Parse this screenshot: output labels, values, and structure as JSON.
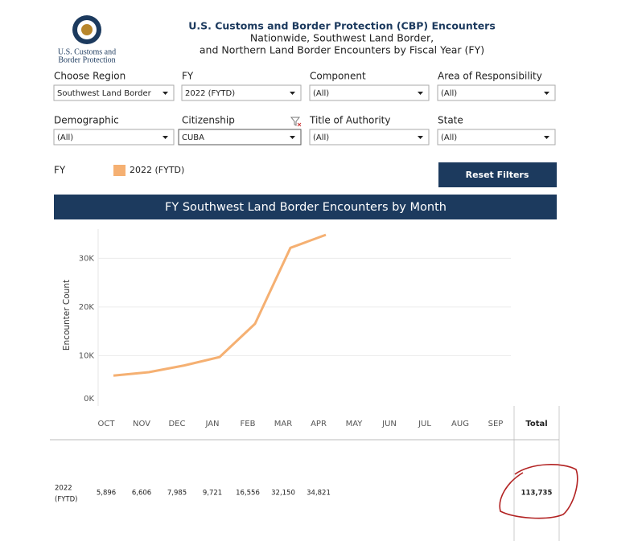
{
  "header": {
    "agency_lines": [
      "U.S. Customs and",
      "Border Protection"
    ],
    "title_lines": [
      "U.S. Customs and Border Protection (CBP) Encounters",
      "Nationwide, Southwest Land Border,",
      "and Northern Land Border Encounters by Fiscal Year (FY)"
    ]
  },
  "filters": [
    {
      "label": "Choose Region",
      "value": "Southwest Land Border"
    },
    {
      "label": "FY",
      "value": "2022 (FYTD)"
    },
    {
      "label": "Component",
      "value": "(All)"
    },
    {
      "label": "Area of Responsibility",
      "value": "(All)"
    },
    {
      "label": "Demographic",
      "value": "(All)"
    },
    {
      "label": "Citizenship",
      "value": "CUBA"
    },
    {
      "label": "Title of Authority",
      "value": "(All)"
    },
    {
      "label": "State",
      "value": "(All)"
    }
  ],
  "legend_title": "FY",
  "reset_button": "Reset Filters",
  "chart_data": {
    "type": "line",
    "title": "FY Southwest Land Border Encounters by Month",
    "y_label": "Encounter Count",
    "categories": [
      "OCT",
      "NOV",
      "DEC",
      "JAN",
      "FEB",
      "MAR",
      "APR",
      "MAY",
      "JUN",
      "JUL",
      "AUG",
      "SEP"
    ],
    "series": [
      {
        "name": "2022 (FYTD)",
        "color": "#f5b072",
        "values": [
          5896,
          6606,
          7985,
          9721,
          16556,
          32150,
          34821,
          null,
          null,
          null,
          null,
          null
        ],
        "value_labels": [
          "5,896",
          "6,606",
          "7,985",
          "9,721",
          "16,556",
          "32,150",
          "34,821",
          null,
          null,
          null,
          null,
          null
        ]
      }
    ],
    "ylim": [
      0,
      36000
    ],
    "yticks": [
      {
        "value": 0,
        "label": "0K"
      },
      {
        "value": 10000,
        "label": "10K"
      },
      {
        "value": 20000,
        "label": "20K"
      },
      {
        "value": 30000,
        "label": "30K"
      }
    ],
    "grid": true
  },
  "table": {
    "row_label": [
      "2022",
      "(FYTD)"
    ],
    "total_header": "Total",
    "total": "113,735"
  }
}
